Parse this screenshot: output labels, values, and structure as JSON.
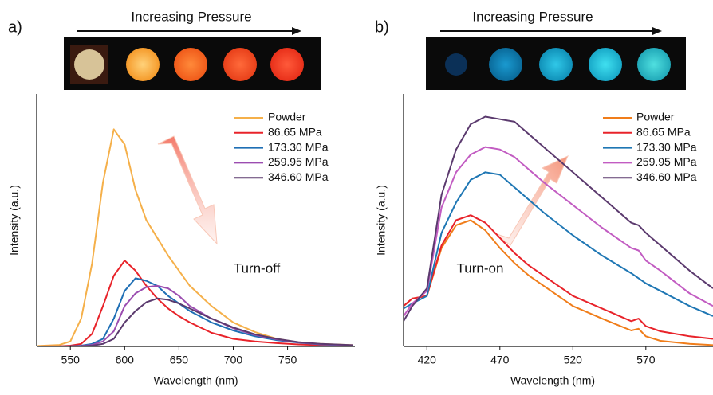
{
  "chart_data": [
    {
      "type": "line",
      "panel_label": "a)",
      "annotations": [
        "Increasing Pressure",
        "Turn-off"
      ],
      "xlabel": "Wavelength (nm)",
      "ylabel": "Intensity (a.u.)",
      "xlim": [
        519,
        812
      ],
      "ylim": [
        0,
        1
      ],
      "xticks": [
        550,
        600,
        650,
        700,
        750
      ],
      "legend": "upper right",
      "x": [
        520,
        540,
        550,
        560,
        570,
        580,
        590,
        600,
        610,
        620,
        630,
        640,
        650,
        660,
        680,
        700,
        720,
        740,
        760,
        780,
        810
      ],
      "series": [
        {
          "name": "Powder",
          "color": "#f5b04a",
          "values": [
            0.002,
            0.006,
            0.02,
            0.11,
            0.33,
            0.65,
            0.86,
            0.8,
            0.62,
            0.5,
            0.43,
            0.36,
            0.3,
            0.24,
            0.16,
            0.095,
            0.057,
            0.03,
            0.016,
            0.01,
            0.005
          ]
        },
        {
          "name": "86.65 MPa",
          "color": "#e8232a",
          "values": [
            0,
            0.001,
            0.003,
            0.01,
            0.05,
            0.16,
            0.28,
            0.34,
            0.3,
            0.24,
            0.19,
            0.15,
            0.12,
            0.095,
            0.054,
            0.03,
            0.02,
            0.013,
            0.008,
            0.005,
            0.003
          ]
        },
        {
          "name": "173.30 MPa",
          "color": "#1f6fb5",
          "values": [
            0,
            0,
            0.001,
            0.003,
            0.01,
            0.03,
            0.11,
            0.22,
            0.27,
            0.26,
            0.24,
            0.2,
            0.17,
            0.14,
            0.095,
            0.063,
            0.04,
            0.025,
            0.015,
            0.008,
            0.004
          ]
        },
        {
          "name": "259.95 MPa",
          "color": "#9b4db0",
          "values": [
            0,
            0,
            0,
            0.002,
            0.006,
            0.02,
            0.06,
            0.16,
            0.21,
            0.235,
            0.24,
            0.23,
            0.2,
            0.16,
            0.11,
            0.072,
            0.045,
            0.028,
            0.016,
            0.009,
            0.004
          ]
        },
        {
          "name": "346.60 MPa",
          "color": "#5b3a6e",
          "values": [
            0,
            0,
            0,
            0.001,
            0.003,
            0.01,
            0.03,
            0.095,
            0.14,
            0.175,
            0.19,
            0.185,
            0.17,
            0.15,
            0.11,
            0.075,
            0.048,
            0.03,
            0.017,
            0.01,
            0.005
          ]
        }
      ]
    },
    {
      "type": "line",
      "panel_label": "b)",
      "annotations": [
        "Increasing Pressure",
        "Turn-on"
      ],
      "xlabel": "Wavelength (nm)",
      "ylabel": "Intensity (a.u.)",
      "xlim": [
        404,
        616
      ],
      "ylim": [
        0,
        1
      ],
      "xticks": [
        420,
        470,
        520,
        570
      ],
      "legend": "upper right",
      "x": [
        404,
        410,
        420,
        430,
        440,
        450,
        460,
        470,
        480,
        490,
        500,
        520,
        540,
        560,
        565,
        570,
        580,
        600,
        616
      ],
      "series": [
        {
          "name": "Powder",
          "color": "#f07d1a",
          "values": [
            0.16,
            0.19,
            0.2,
            0.39,
            0.48,
            0.5,
            0.46,
            0.39,
            0.33,
            0.28,
            0.24,
            0.16,
            0.11,
            0.063,
            0.07,
            0.04,
            0.022,
            0.01,
            0.005
          ]
        },
        {
          "name": "86.65 MPa",
          "color": "#e8232a",
          "values": [
            0.16,
            0.19,
            0.2,
            0.4,
            0.5,
            0.52,
            0.49,
            0.43,
            0.37,
            0.32,
            0.28,
            0.2,
            0.15,
            0.1,
            0.11,
            0.08,
            0.06,
            0.04,
            0.03
          ]
        },
        {
          "name": "173.30 MPa",
          "color": "#1f77b4",
          "values": [
            0.15,
            0.17,
            0.2,
            0.45,
            0.57,
            0.66,
            0.69,
            0.68,
            0.63,
            0.58,
            0.53,
            0.44,
            0.36,
            0.29,
            0.27,
            0.25,
            0.22,
            0.16,
            0.12
          ]
        },
        {
          "name": "259.95 MPa",
          "color": "#c25cc2",
          "values": [
            0.12,
            0.17,
            0.22,
            0.55,
            0.69,
            0.76,
            0.79,
            0.78,
            0.75,
            0.7,
            0.65,
            0.56,
            0.47,
            0.39,
            0.38,
            0.34,
            0.3,
            0.21,
            0.16
          ]
        },
        {
          "name": "346.60 MPa",
          "color": "#5b3a6e",
          "values": [
            0.1,
            0.16,
            0.23,
            0.6,
            0.78,
            0.88,
            0.91,
            0.9,
            0.89,
            0.84,
            0.79,
            0.69,
            0.59,
            0.49,
            0.48,
            0.45,
            0.4,
            0.3,
            0.23
          ]
        }
      ]
    }
  ]
}
